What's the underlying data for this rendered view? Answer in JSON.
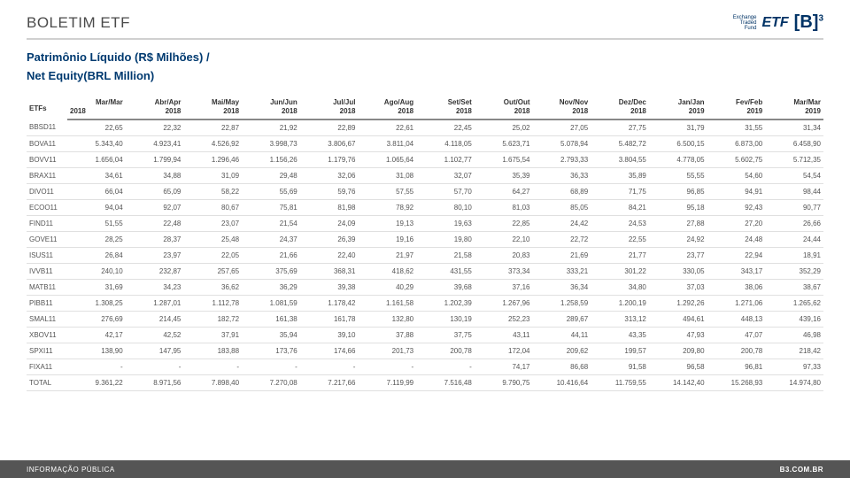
{
  "header": {
    "title": "BOLETIM ETF",
    "etf_small1": "Exchange",
    "etf_small2": "Traded",
    "etf_small3": "Fund",
    "etf_big": "ETF",
    "b3": "[B]",
    "b3_sup": "3"
  },
  "subtitle": {
    "line1": "Patrimônio Líquido (R$ Milhões) /",
    "line2": "Net Equity(BRL Million)"
  },
  "table": {
    "corner": "ETFs",
    "months": [
      "Mar/Mar",
      "Abr/Apr",
      "Mai/May",
      "Jun/Jun",
      "Jul/Jul",
      "Ago/Aug",
      "Set/Set",
      "Out/Out",
      "Nov/Nov",
      "Dez/Dec",
      "Jan/Jan",
      "Fev/Feb",
      "Mar/Mar"
    ],
    "years": [
      "2018",
      "2018",
      "2018",
      "2018",
      "2018",
      "2018",
      "2018",
      "2018",
      "2018",
      "2018",
      "2019",
      "2019",
      "2019"
    ],
    "rows": [
      {
        "name": "BBSD11",
        "vals": [
          "22,65",
          "22,32",
          "22,87",
          "21,92",
          "22,89",
          "22,61",
          "22,45",
          "25,02",
          "27,05",
          "27,75",
          "31,79",
          "31,55",
          "31,34"
        ]
      },
      {
        "name": "BOVA11",
        "vals": [
          "5.343,40",
          "4.923,41",
          "4.526,92",
          "3.998,73",
          "3.806,67",
          "3.811,04",
          "4.118,05",
          "5.623,71",
          "5.078,94",
          "5.482,72",
          "6.500,15",
          "6.873,00",
          "6.458,90"
        ]
      },
      {
        "name": "BOVV11",
        "vals": [
          "1.656,04",
          "1.799,94",
          "1.296,46",
          "1.156,26",
          "1.179,76",
          "1.065,64",
          "1.102,77",
          "1.675,54",
          "2.793,33",
          "3.804,55",
          "4.778,05",
          "5.602,75",
          "5.712,35"
        ]
      },
      {
        "name": "BRAX11",
        "vals": [
          "34,61",
          "34,88",
          "31,09",
          "29,48",
          "32,06",
          "31,08",
          "32,07",
          "35,39",
          "36,33",
          "35,89",
          "55,55",
          "54,60",
          "54,54"
        ]
      },
      {
        "name": "DIVO11",
        "vals": [
          "66,04",
          "65,09",
          "58,22",
          "55,69",
          "59,76",
          "57,55",
          "57,70",
          "64,27",
          "68,89",
          "71,75",
          "96,85",
          "94,91",
          "98,44"
        ]
      },
      {
        "name": "ECOO11",
        "vals": [
          "94,04",
          "92,07",
          "80,67",
          "75,81",
          "81,98",
          "78,92",
          "80,10",
          "81,03",
          "85,05",
          "84,21",
          "95,18",
          "92,43",
          "90,77"
        ]
      },
      {
        "name": "FIND11",
        "vals": [
          "51,55",
          "22,48",
          "23,07",
          "21,54",
          "24,09",
          "19,13",
          "19,63",
          "22,85",
          "24,42",
          "24,53",
          "27,88",
          "27,20",
          "26,66"
        ]
      },
      {
        "name": "GOVE11",
        "vals": [
          "28,25",
          "28,37",
          "25,48",
          "24,37",
          "26,39",
          "19,16",
          "19,80",
          "22,10",
          "22,72",
          "22,55",
          "24,92",
          "24,48",
          "24,44"
        ]
      },
      {
        "name": "ISUS11",
        "vals": [
          "26,84",
          "23,97",
          "22,05",
          "21,66",
          "22,40",
          "21,97",
          "21,58",
          "20,83",
          "21,69",
          "21,77",
          "23,77",
          "22,94",
          "18,91"
        ]
      },
      {
        "name": "IVVB11",
        "vals": [
          "240,10",
          "232,87",
          "257,65",
          "375,69",
          "368,31",
          "418,62",
          "431,55",
          "373,34",
          "333,21",
          "301,22",
          "330,05",
          "343,17",
          "352,29"
        ]
      },
      {
        "name": "MATB11",
        "vals": [
          "31,69",
          "34,23",
          "36,62",
          "36,29",
          "39,38",
          "40,29",
          "39,68",
          "37,16",
          "36,34",
          "34,80",
          "37,03",
          "38,06",
          "38,67"
        ]
      },
      {
        "name": "PIBB11",
        "vals": [
          "1.308,25",
          "1.287,01",
          "1.112,78",
          "1.081,59",
          "1.178,42",
          "1.161,58",
          "1.202,39",
          "1.267,96",
          "1.258,59",
          "1.200,19",
          "1.292,26",
          "1.271,06",
          "1.265,62"
        ]
      },
      {
        "name": "SMAL11",
        "vals": [
          "276,69",
          "214,45",
          "182,72",
          "161,38",
          "161,78",
          "132,80",
          "130,19",
          "252,23",
          "289,67",
          "313,12",
          "494,61",
          "448,13",
          "439,16"
        ]
      },
      {
        "name": "XBOV11",
        "vals": [
          "42,17",
          "42,52",
          "37,91",
          "35,94",
          "39,10",
          "37,88",
          "37,75",
          "43,11",
          "44,11",
          "43,35",
          "47,93",
          "47,07",
          "46,98"
        ]
      },
      {
        "name": "SPXI11",
        "vals": [
          "138,90",
          "147,95",
          "183,88",
          "173,76",
          "174,66",
          "201,73",
          "200,78",
          "172,04",
          "209,62",
          "199,57",
          "209,80",
          "200,78",
          "218,42"
        ]
      },
      {
        "name": "FIXA11",
        "vals": [
          "-",
          "-",
          "-",
          "-",
          "-",
          "-",
          "-",
          "74,17",
          "86,68",
          "91,58",
          "96,58",
          "96,81",
          "97,33"
        ]
      },
      {
        "name": "TOTAL",
        "vals": [
          "9.361,22",
          "8.971,56",
          "7.898,40",
          "7.270,08",
          "7.217,66",
          "7.119,99",
          "7.516,48",
          "9.790,75",
          "10.416,64",
          "11.759,55",
          "14.142,40",
          "15.268,93",
          "14.974,80"
        ]
      }
    ]
  },
  "footer": {
    "left": "INFORMAÇÃO PÚBLICA",
    "right": "B3.COM.BR"
  }
}
